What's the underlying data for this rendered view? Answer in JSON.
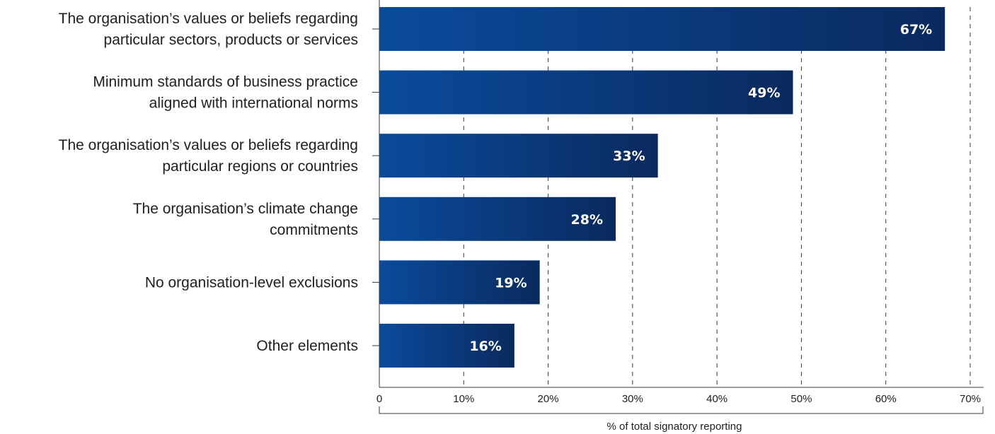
{
  "chart_data": {
    "type": "bar",
    "orientation": "horizontal",
    "categories": [
      [
        "The organisation’s values or beliefs regarding",
        "particular sectors, products or services"
      ],
      [
        "Minimum standards of business practice",
        "aligned with international norms"
      ],
      [
        "The organisation’s values or beliefs regarding",
        "particular regions or countries"
      ],
      [
        "The organisation’s climate change",
        "commitments"
      ],
      [
        "No organisation-level exclusions"
      ],
      [
        "Other elements"
      ]
    ],
    "values": [
      67,
      49,
      33,
      28,
      19,
      16
    ],
    "data_labels": [
      "67%",
      "49%",
      "33%",
      "28%",
      "19%",
      "16%"
    ],
    "xlabel": "% of total signatory reporting",
    "ylabel": "",
    "xlim": [
      0,
      70
    ],
    "xticks": [
      0,
      10,
      20,
      30,
      40,
      50,
      60,
      70
    ],
    "xtick_labels": [
      "0",
      "10%",
      "20%",
      "30%",
      "40%",
      "50%",
      "60%",
      "70%"
    ],
    "grid": "vertical dashed",
    "colors": {
      "bar_start": "#0a4b9c",
      "bar_end": "#0a2a5e",
      "grid": "#3a3a3a",
      "axis": "#3a3a3a"
    }
  }
}
